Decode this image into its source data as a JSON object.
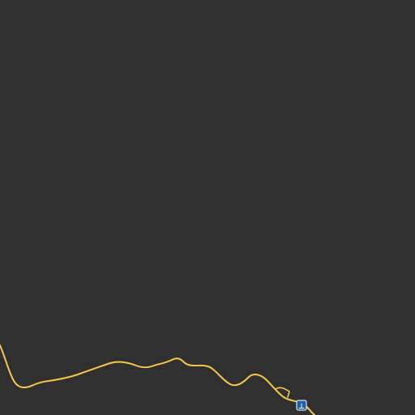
{
  "map": {
    "background_color": "#303030",
    "road_color": "#f5c84c",
    "features": {
      "road": {
        "kind": "road"
      },
      "road_spur": {
        "kind": "road"
      },
      "marker": {
        "icon": "bus-stop-icon",
        "fill_color": "#1f5fa8",
        "stroke_color": "#ffffff",
        "glyph": "⊥"
      }
    }
  }
}
